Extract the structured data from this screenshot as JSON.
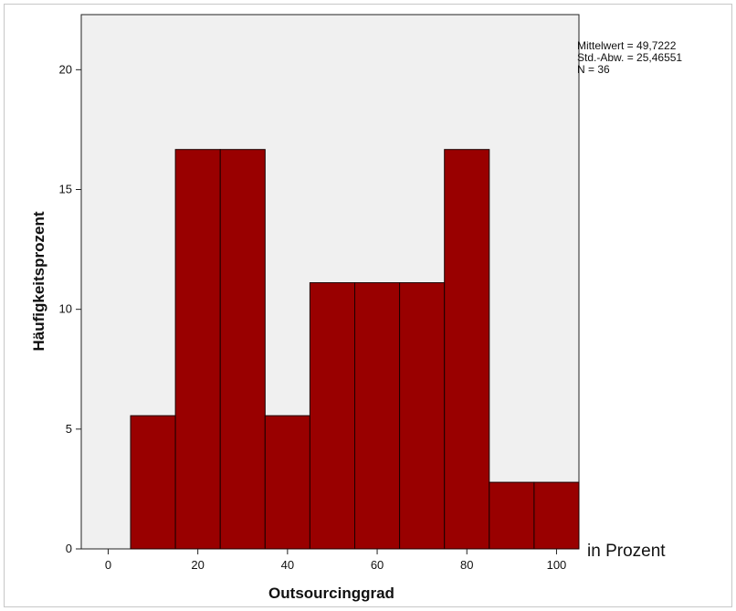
{
  "chart_data": {
    "type": "bar",
    "subtype": "histogram",
    "bins": [
      {
        "from": 5,
        "to": 15,
        "value": 5.56
      },
      {
        "from": 15,
        "to": 25,
        "value": 16.67
      },
      {
        "from": 25,
        "to": 35,
        "value": 16.67
      },
      {
        "from": 35,
        "to": 45,
        "value": 5.56
      },
      {
        "from": 45,
        "to": 55,
        "value": 11.11
      },
      {
        "from": 55,
        "to": 65,
        "value": 11.11
      },
      {
        "from": 65,
        "to": 75,
        "value": 11.11
      },
      {
        "from": 75,
        "to": 85,
        "value": 16.67
      },
      {
        "from": 85,
        "to": 95,
        "value": 2.78
      },
      {
        "from": 95,
        "to": 105,
        "value": 2.78
      }
    ],
    "xlabel": "Outsourcinggrad",
    "ylabel": "Häufigkeitsprozent",
    "x_unit_label": "in Prozent",
    "xlim": [
      -6,
      105
    ],
    "ylim": [
      0,
      22.3
    ],
    "x_ticks": [
      "0",
      "20",
      "40",
      "60",
      "80",
      "100"
    ],
    "y_ticks": [
      "0",
      "5",
      "10",
      "15",
      "20"
    ],
    "stats": {
      "mean_line": "Mittelwert = 49,7222",
      "sd_line": "Std.-Abw. = 25,46551",
      "n_line": "N = 36"
    },
    "grid": false,
    "bar_color": "#990000",
    "plot_background": "#f0f0f0"
  }
}
